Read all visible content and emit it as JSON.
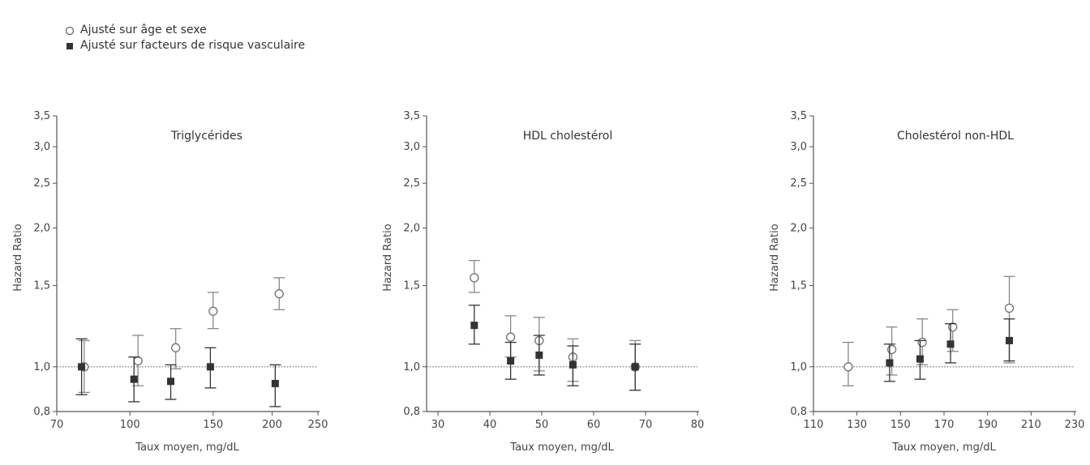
{
  "legend": {
    "items": [
      {
        "label": "Ajusté sur âge et sexe",
        "marker": "open-circle"
      },
      {
        "label": "Ajusté sur facteurs de risque vasculaire",
        "marker": "filled-square"
      }
    ]
  },
  "colors": {
    "axis": "#555555",
    "circle": "#888888",
    "square": "#333333",
    "reference": "#888888"
  },
  "chart_data": [
    {
      "type": "scatter",
      "title": "Triglycérides",
      "xlabel": "Taux moyen, mg/dL",
      "ylabel": "Hazard Ratio",
      "x_scale": "log",
      "x_ticks": [
        70,
        100,
        150,
        200,
        250
      ],
      "y_scale": "log",
      "y_ticks": [
        "0,8",
        "1,0",
        "1,5",
        "2,0",
        "2,5",
        "3,0",
        "3,5"
      ],
      "ylim": [
        0.8,
        3.5
      ],
      "reference_line": 1.0,
      "series": [
        {
          "name": "Ajusté sur âge et sexe",
          "marker": "open-circle",
          "points": [
            {
              "x": 80,
              "y": 1.0,
              "lo": 0.88,
              "hi": 1.14
            },
            {
              "x": 104,
              "y": 1.03,
              "lo": 0.91,
              "hi": 1.17
            },
            {
              "x": 125,
              "y": 1.1,
              "lo": 0.99,
              "hi": 1.21
            },
            {
              "x": 150,
              "y": 1.32,
              "lo": 1.21,
              "hi": 1.45
            },
            {
              "x": 207,
              "y": 1.44,
              "lo": 1.33,
              "hi": 1.56
            }
          ]
        },
        {
          "name": "Ajusté sur facteurs de risque vasculaire",
          "marker": "filled-square",
          "points": [
            {
              "x": 79,
              "y": 1.0,
              "lo": 0.87,
              "hi": 1.15
            },
            {
              "x": 102,
              "y": 0.94,
              "lo": 0.84,
              "hi": 1.05
            },
            {
              "x": 122,
              "y": 0.93,
              "lo": 0.85,
              "hi": 1.01
            },
            {
              "x": 148,
              "y": 1.0,
              "lo": 0.9,
              "hi": 1.1
            },
            {
              "x": 203,
              "y": 0.92,
              "lo": 0.82,
              "hi": 1.01
            }
          ]
        }
      ]
    },
    {
      "type": "scatter",
      "title": "HDL cholestérol",
      "xlabel": "Taux moyen, mg/dL",
      "ylabel": "Hazard Ratio",
      "x_scale": "linear",
      "x_ticks": [
        30,
        40,
        50,
        60,
        70,
        80
      ],
      "y_scale": "log",
      "y_ticks": [
        "0,8",
        "1,0",
        "1,5",
        "2,0",
        "2,5",
        "3,0",
        "3,5"
      ],
      "ylim": [
        0.8,
        3.5
      ],
      "reference_line": 1.0,
      "series": [
        {
          "name": "Ajusté sur âge et sexe",
          "marker": "open-circle",
          "points": [
            {
              "x": 37,
              "y": 1.56,
              "lo": 1.45,
              "hi": 1.7
            },
            {
              "x": 44,
              "y": 1.16,
              "lo": 1.05,
              "hi": 1.29
            },
            {
              "x": 49.5,
              "y": 1.14,
              "lo": 0.98,
              "hi": 1.28
            },
            {
              "x": 56,
              "y": 1.05,
              "lo": 0.93,
              "hi": 1.15
            },
            {
              "x": 68,
              "y": 1.0,
              "lo": 0.89,
              "hi": 1.14
            }
          ]
        },
        {
          "name": "Ajusté sur facteurs de risque vasculaire",
          "marker": "filled-square",
          "points": [
            {
              "x": 37,
              "y": 1.23,
              "lo": 1.12,
              "hi": 1.36
            },
            {
              "x": 44,
              "y": 1.03,
              "lo": 0.94,
              "hi": 1.13
            },
            {
              "x": 49.5,
              "y": 1.06,
              "lo": 0.96,
              "hi": 1.17
            },
            {
              "x": 56,
              "y": 1.01,
              "lo": 0.91,
              "hi": 1.11
            },
            {
              "x": 68,
              "y": 1.0,
              "lo": 0.89,
              "hi": 1.12
            }
          ]
        }
      ]
    },
    {
      "type": "scatter",
      "title": "Cholestérol non-HDL",
      "xlabel": "Taux moyen, mg/dL",
      "ylabel": "Hazard Ratio",
      "x_scale": "linear",
      "x_ticks": [
        110,
        130,
        150,
        170,
        190,
        210,
        230
      ],
      "y_scale": "log",
      "y_ticks": [
        "0,8",
        "1,0",
        "1,5",
        "2,0",
        "2,5",
        "3,0",
        "3,5"
      ],
      "ylim": [
        0.8,
        3.5
      ],
      "reference_line": 1.0,
      "series": [
        {
          "name": "Ajusté sur âge et sexe",
          "marker": "open-circle",
          "points": [
            {
              "x": 126,
              "y": 1.0,
              "lo": 0.91,
              "hi": 1.13
            },
            {
              "x": 146,
              "y": 1.09,
              "lo": 0.96,
              "hi": 1.22
            },
            {
              "x": 160,
              "y": 1.13,
              "lo": 1.01,
              "hi": 1.27
            },
            {
              "x": 174,
              "y": 1.22,
              "lo": 1.08,
              "hi": 1.33
            },
            {
              "x": 200,
              "y": 1.34,
              "lo": 1.02,
              "hi": 1.57
            }
          ]
        },
        {
          "name": "Ajusté sur facteurs de risque vasculaire",
          "marker": "filled-square",
          "points": [
            {
              "x": 145,
              "y": 1.02,
              "lo": 0.93,
              "hi": 1.12
            },
            {
              "x": 159,
              "y": 1.04,
              "lo": 0.94,
              "hi": 1.14
            },
            {
              "x": 173,
              "y": 1.12,
              "lo": 1.02,
              "hi": 1.24
            },
            {
              "x": 200,
              "y": 1.14,
              "lo": 1.03,
              "hi": 1.27
            }
          ]
        }
      ]
    }
  ]
}
